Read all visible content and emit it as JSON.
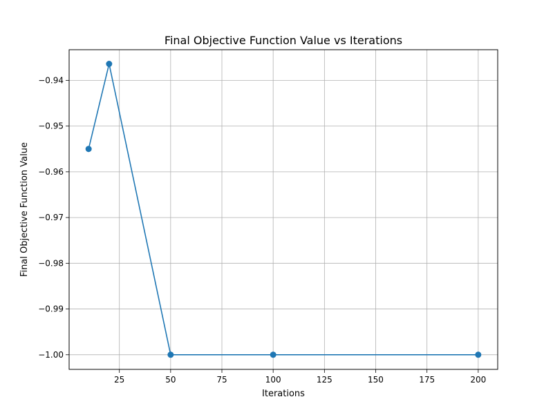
{
  "chart_data": {
    "type": "line",
    "title": "Final Objective Function Value vs Iterations",
    "xlabel": "Iterations",
    "ylabel": "Final Objective Function Value",
    "xlim": [
      0.5,
      209.5
    ],
    "ylim": [
      -1.0032,
      -0.9333
    ],
    "xticks": [
      25,
      50,
      75,
      100,
      125,
      150,
      175,
      200
    ],
    "xtick_labels": [
      "25",
      "50",
      "75",
      "100",
      "125",
      "150",
      "175",
      "200"
    ],
    "yticks": [
      -0.94,
      -0.95,
      -0.96,
      -0.97,
      -0.98,
      -0.99,
      -1.0
    ],
    "ytick_labels": [
      "−0.94",
      "−0.95",
      "−0.96",
      "−0.97",
      "−0.98",
      "−0.99",
      "−1.00"
    ],
    "grid": true,
    "series": [
      {
        "x": [
          10,
          20,
          50,
          100,
          200
        ],
        "values": [
          -0.955,
          -0.9364,
          -1.0,
          -1.0,
          -1.0
        ],
        "color": "#1f77b4",
        "marker": "circle"
      }
    ]
  }
}
